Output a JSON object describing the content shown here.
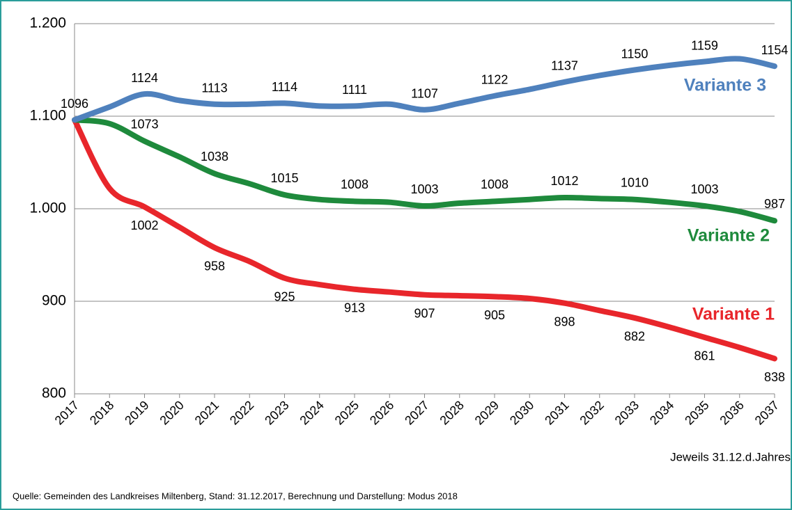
{
  "chart_data": {
    "type": "line",
    "categories": [
      "2017",
      "2018",
      "2019",
      "2020",
      "2021",
      "2022",
      "2023",
      "2024",
      "2025",
      "2026",
      "2027",
      "2028",
      "2029",
      "2030",
      "2031",
      "2032",
      "2033",
      "2034",
      "2035",
      "2036",
      "2037"
    ],
    "series": [
      {
        "name": "Variante 1",
        "color": "#e8262b",
        "values": [
          1096,
          1022,
          1002,
          980,
          958,
          943,
          925,
          918,
          913,
          910,
          907,
          906,
          905,
          903,
          898,
          890,
          882,
          872,
          861,
          850,
          838
        ]
      },
      {
        "name": "Variante 2",
        "color": "#1e8a3c",
        "values": [
          1096,
          1092,
          1073,
          1056,
          1038,
          1027,
          1015,
          1010,
          1008,
          1007,
          1003,
          1006,
          1008,
          1010,
          1012,
          1011,
          1010,
          1007,
          1003,
          997,
          987
        ]
      },
      {
        "name": "Variante 3",
        "color": "#4f81bd",
        "values": [
          1096,
          1110,
          1124,
          1117,
          1113,
          1113,
          1114,
          1111,
          1111,
          1113,
          1107,
          1114,
          1122,
          1129,
          1137,
          1144,
          1150,
          1155,
          1159,
          1162,
          1154
        ]
      }
    ],
    "ylim": [
      800,
      1200
    ],
    "yticks": [
      800,
      900,
      {
        "value": 1000,
        "label": "1.000"
      },
      {
        "value": 1100,
        "label": "1.100"
      },
      {
        "value": 1200,
        "label": "1.200"
      }
    ],
    "grid": true,
    "note": "Jeweils 31.12.d.Jahres",
    "source": "Quelle:  Gemeinden des Landkreises Miltenberg, Stand: 31.12.2017, Berechnung und Darstellung: Modus 2018"
  }
}
